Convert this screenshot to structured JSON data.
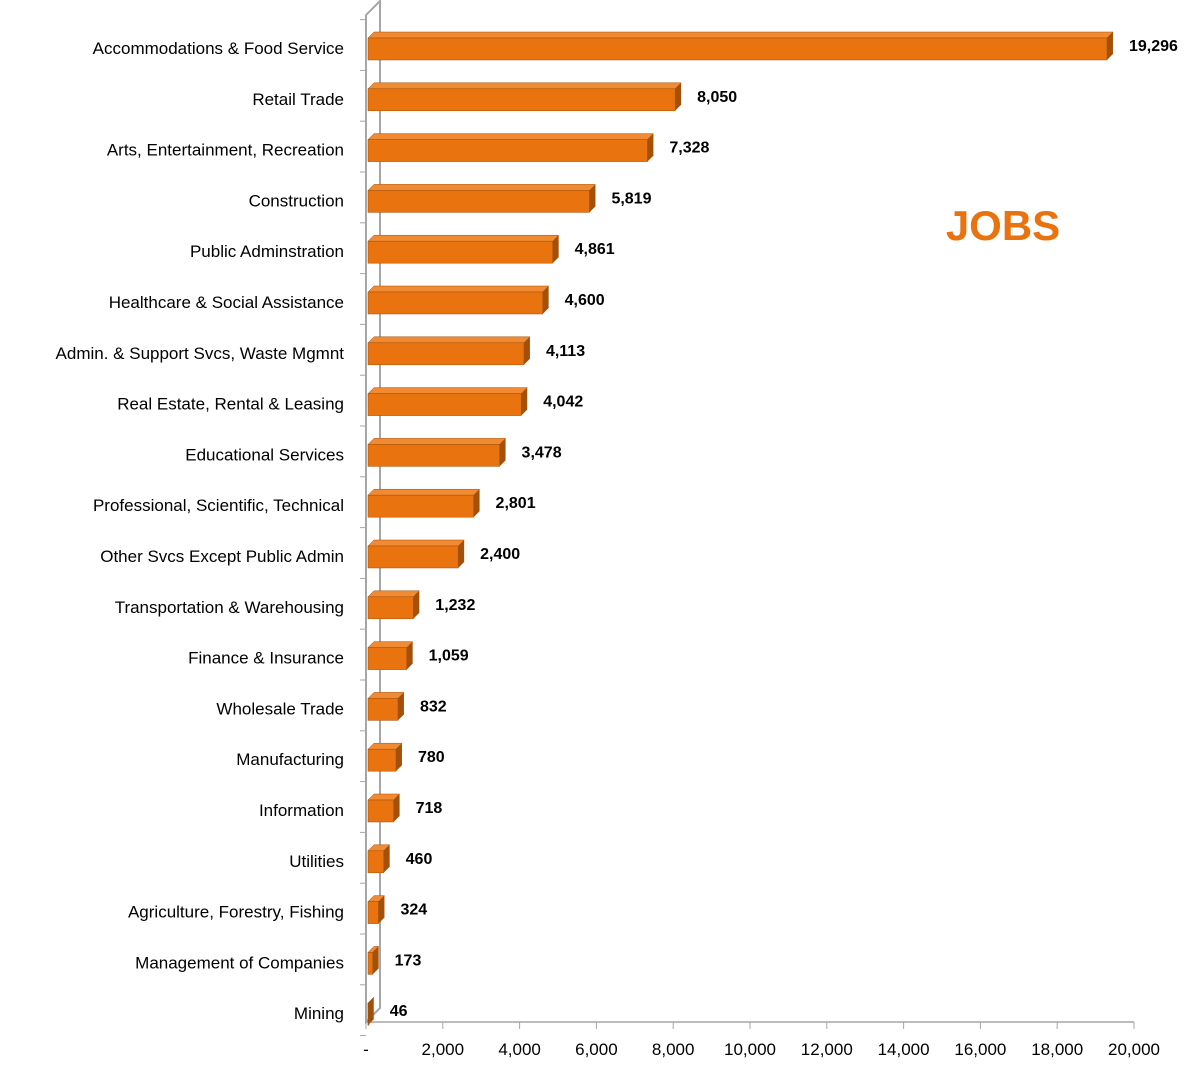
{
  "colors": {
    "bar_front": "#E8730F",
    "bar_top": "#F08A33",
    "bar_side": "#A2500A",
    "title": "#E8730F",
    "axis": "#A6A6A6"
  },
  "chart_data": {
    "type": "bar",
    "orientation": "horizontal",
    "style": "3d",
    "title": "JOBS",
    "xlabel": "",
    "ylabel": "",
    "xlim": [
      0,
      20000
    ],
    "x_ticks": [
      "-",
      "2,000",
      "4,000",
      "6,000",
      "8,000",
      "10,000",
      "12,000",
      "14,000",
      "16,000",
      "18,000",
      "20,000"
    ],
    "grid": false,
    "legend": "none",
    "categories": [
      "Accommodations & Food Service",
      "Retail Trade",
      "Arts, Entertainment, Recreation",
      "Construction",
      "Public Adminstration",
      "Healthcare & Social Assistance",
      "Admin. & Support Svcs, Waste Mgmnt",
      "Real Estate, Rental & Leasing",
      "Educational Services",
      "Professional, Scientific, Technical",
      "Other Svcs Except Public Admin",
      "Transportation & Warehousing",
      "Finance & Insurance",
      "Wholesale Trade",
      "Manufacturing",
      "Information",
      "Utilities",
      "Agriculture, Forestry, Fishing",
      "Management of Companies",
      "Mining"
    ],
    "values": [
      19296,
      8050,
      7328,
      5819,
      4861,
      4600,
      4113,
      4042,
      3478,
      2801,
      2400,
      1232,
      1059,
      832,
      780,
      718,
      460,
      324,
      173,
      46
    ],
    "value_labels": [
      "19,296",
      "8,050",
      "7,328",
      "5,819",
      "4,861",
      "4,600",
      "4,113",
      "4,042",
      "3,478",
      "2,801",
      "2,400",
      "1,232",
      "1,059",
      "832",
      "780",
      "718",
      "460",
      "324",
      "173",
      "46"
    ]
  }
}
